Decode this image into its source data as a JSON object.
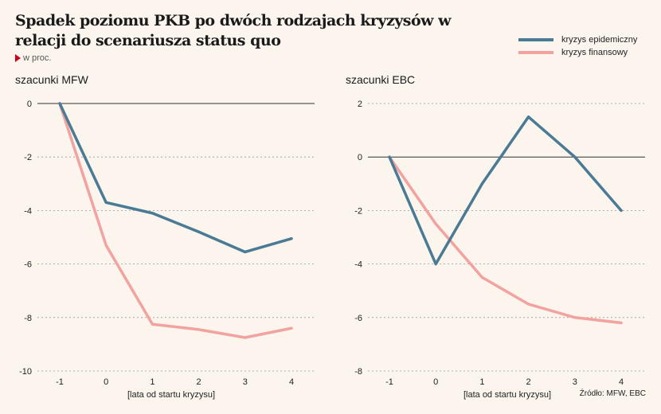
{
  "header": {
    "title": "Spadek poziomu PKB po dwóch rodzajach kryzysów w relacji do scenariusza status quo",
    "unit": "w proc."
  },
  "legend": [
    {
      "label": "kryzys epidemiczny",
      "color": "#4a7a94"
    },
    {
      "label": "kryzys finansowy",
      "color": "#f2a29f"
    }
  ],
  "source": "Źródło: MFW, EBC",
  "chart_data": [
    {
      "type": "line",
      "title": "szacunki MFW",
      "xlabel": "[lata od startu kryzysu]",
      "ylabel": "",
      "x": [
        -1,
        0,
        1,
        2,
        3,
        4
      ],
      "xlim": [
        -1,
        4
      ],
      "ylim": [
        -10,
        0
      ],
      "yticks": [
        0,
        -2,
        -4,
        -6,
        -8,
        -10
      ],
      "zero_line": true,
      "grid": "dashed horizontal",
      "series": [
        {
          "name": "kryzys epidemiczny",
          "color": "#4a7a94",
          "values": [
            0,
            -3.7,
            -4.1,
            -4.8,
            -5.55,
            -5.05
          ]
        },
        {
          "name": "kryzys finansowy",
          "color": "#f2a29f",
          "values": [
            0,
            -5.3,
            -8.25,
            -8.45,
            -8.75,
            -8.4
          ]
        }
      ]
    },
    {
      "type": "line",
      "title": "szacunki EBC",
      "xlabel": "[lata od startu kryzysu]",
      "ylabel": "",
      "x": [
        -1,
        0,
        1,
        2,
        3,
        4
      ],
      "xlim": [
        -1,
        4
      ],
      "ylim": [
        -8,
        2
      ],
      "yticks": [
        2,
        0,
        -2,
        -4,
        -6,
        -8
      ],
      "zero_line": true,
      "grid": "dashed horizontal",
      "series": [
        {
          "name": "kryzys epidemiczny",
          "color": "#4a7a94",
          "values": [
            0,
            -4.0,
            -1.0,
            1.5,
            0,
            -2.0
          ]
        },
        {
          "name": "kryzys finansowy",
          "color": "#f2a29f",
          "values": [
            0,
            -2.5,
            -4.5,
            -5.5,
            -6.0,
            -6.2
          ]
        }
      ]
    }
  ]
}
